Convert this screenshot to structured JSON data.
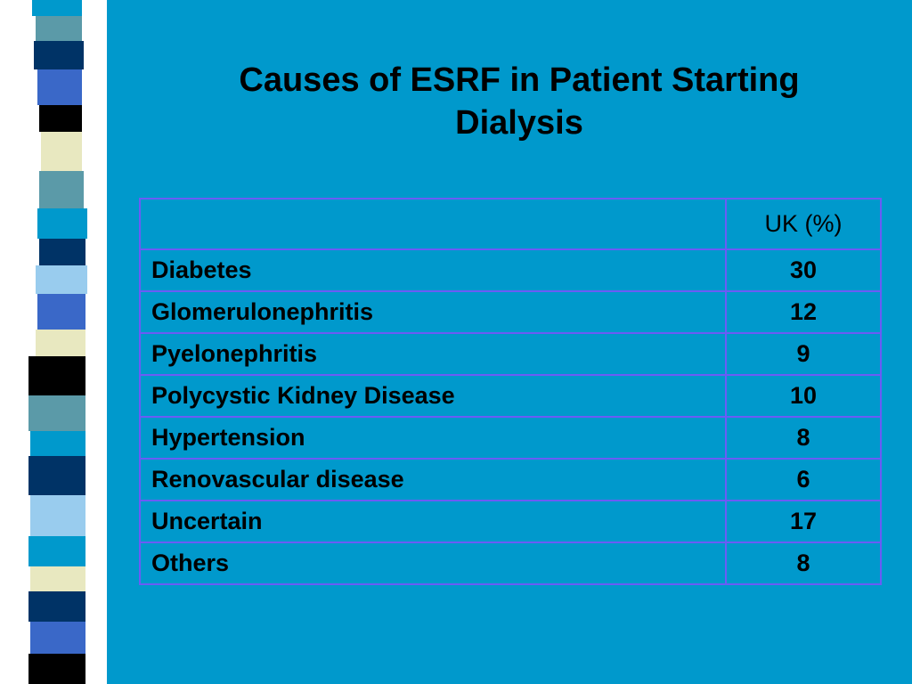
{
  "slide": {
    "title_line1": "Causes of ESRF in Patient Starting",
    "title_line2": "Dialysis"
  },
  "table": {
    "header": {
      "label": "",
      "value": "UK (%)"
    },
    "rows": [
      {
        "label": "Diabetes",
        "value": "30"
      },
      {
        "label": "Glomerulonephritis",
        "value": "12"
      },
      {
        "label": "Pyelonephritis",
        "value": "9"
      },
      {
        "label": "Polycystic Kidney Disease",
        "value": "10"
      },
      {
        "label": "Hypertension",
        "value": "8"
      },
      {
        "label": "Renovascular disease",
        "value": "6"
      },
      {
        "label": "Uncertain",
        "value": "17"
      },
      {
        "label": "Others",
        "value": "8"
      }
    ]
  },
  "colors": {
    "background": "#0099cc",
    "table_border": "#6b5cf5",
    "decor_stripes": [
      "#000000",
      "#5b9aa8",
      "#003366",
      "#3a68c8",
      "#e8e8c0",
      "#99ccee",
      "#0099cc"
    ]
  }
}
